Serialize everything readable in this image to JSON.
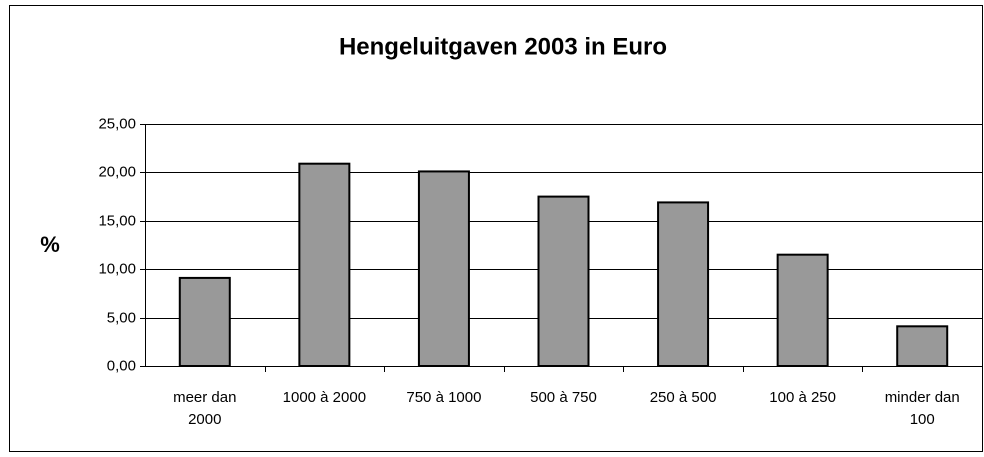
{
  "chart_data": {
    "type": "bar",
    "title": "Hengeluitgaven 2003 in Euro",
    "y_label": "%",
    "categories": [
      "meer dan\n2000",
      "1000 à 2000",
      "750 à 1000",
      "500 à 750",
      "250 à 500",
      "100 à 250",
      "minder dan\n100"
    ],
    "values": [
      9.1,
      20.9,
      20.1,
      17.5,
      16.9,
      11.5,
      4.1
    ],
    "color": "#999999",
    "ylim": [
      0,
      25
    ],
    "yticks": [
      {
        "value": 0,
        "label": "0,00"
      },
      {
        "value": 5,
        "label": "5,00"
      },
      {
        "value": 10,
        "label": "10,00"
      },
      {
        "value": 15,
        "label": "15,00"
      },
      {
        "value": 20,
        "label": "20,00"
      },
      {
        "value": 25,
        "label": "25,00"
      }
    ],
    "grid": true
  }
}
